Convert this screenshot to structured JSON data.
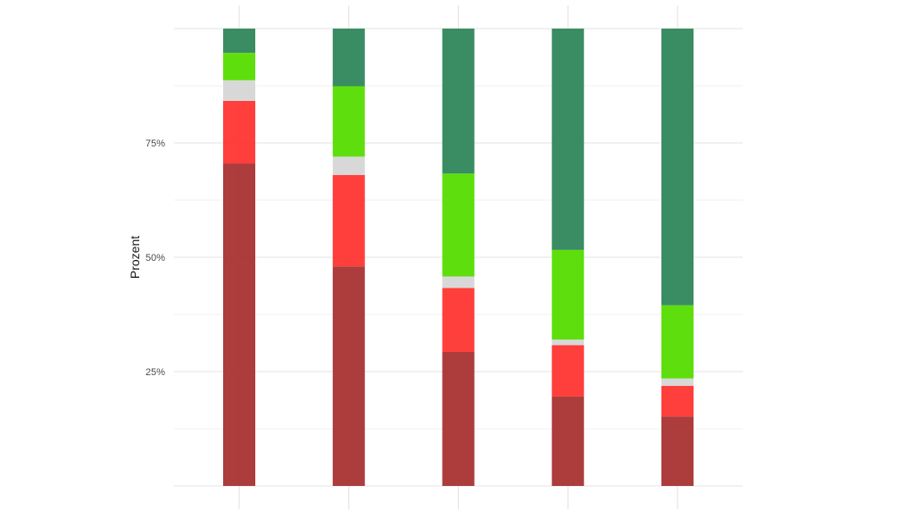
{
  "chart_data": {
    "type": "bar",
    "stacked": true,
    "orientation": "vertical",
    "title": "",
    "xlabel": "",
    "ylabel": "Prozent",
    "ylim": [
      0,
      100
    ],
    "grid": true,
    "legend": "none",
    "y_ticks": [
      {
        "value": 25,
        "label": "25%"
      },
      {
        "value": 50,
        "label": "50%"
      },
      {
        "value": 75,
        "label": "75%"
      }
    ],
    "categories": [
      "",
      "",
      "",
      "",
      ""
    ],
    "series": [
      {
        "color": "#a93131",
        "values": [
          70.5,
          48.0,
          29.3,
          19.6,
          15.2
        ]
      },
      {
        "color": "#ff3530",
        "values": [
          13.7,
          20.0,
          14.0,
          11.2,
          6.7
        ]
      },
      {
        "color": "#d6d6d6",
        "values": [
          4.5,
          4.0,
          2.5,
          1.2,
          1.6
        ]
      },
      {
        "color": "#55dd00",
        "values": [
          6.0,
          15.4,
          22.5,
          19.6,
          16.0
        ]
      },
      {
        "color": "#2f875a",
        "values": [
          5.3,
          12.6,
          31.7,
          48.4,
          60.5
        ]
      }
    ]
  }
}
